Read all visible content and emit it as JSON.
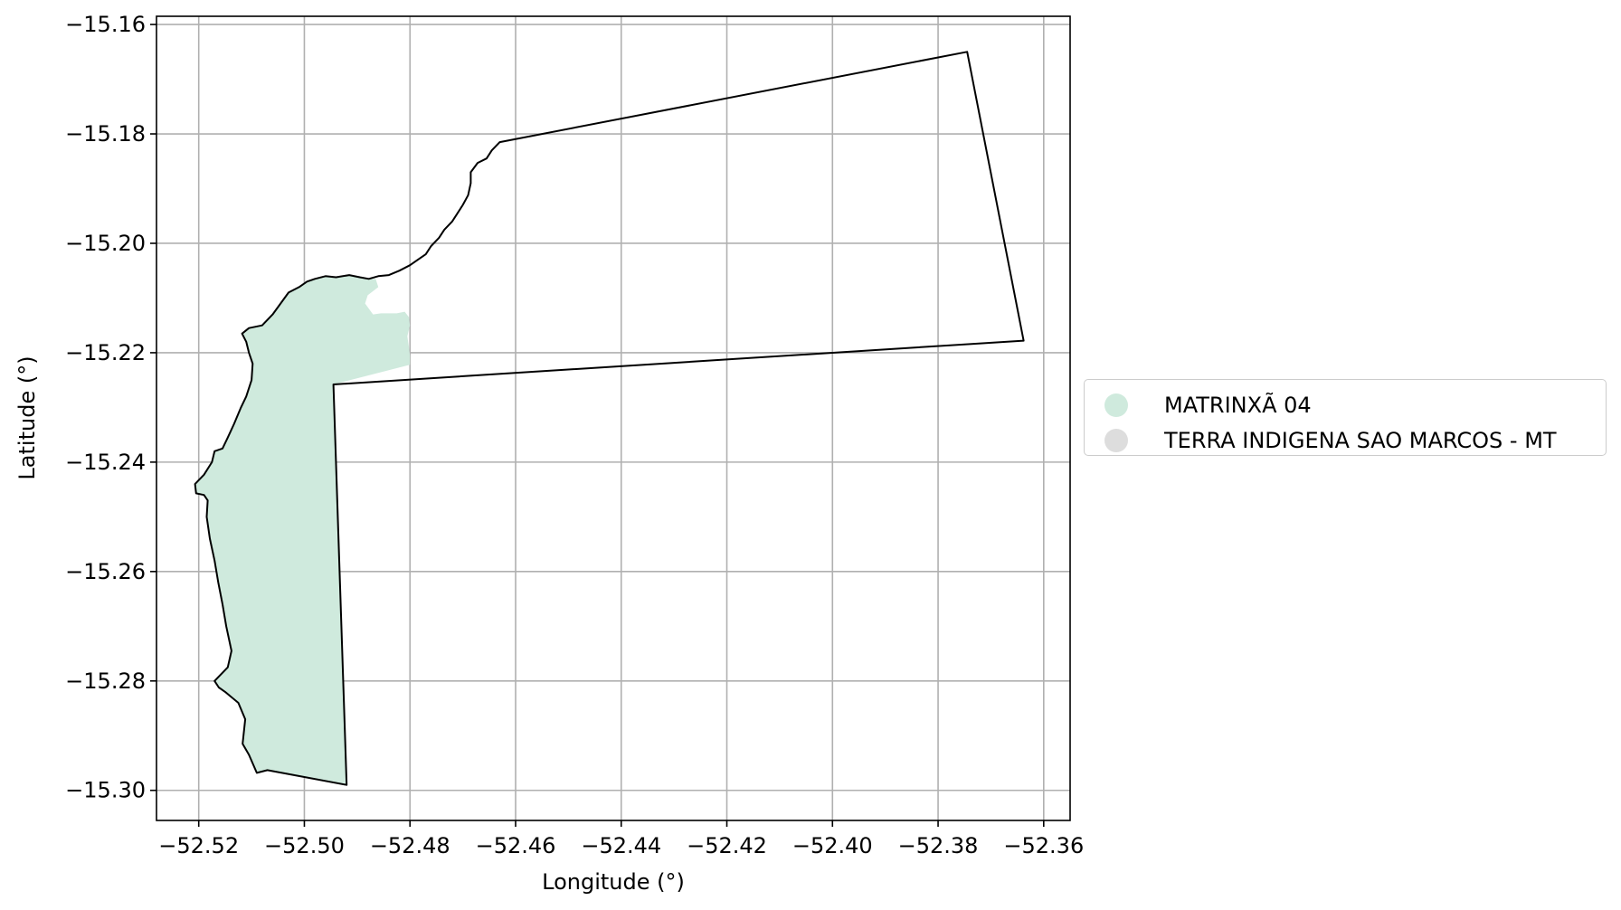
{
  "chart_data": {
    "type": "map",
    "title": "",
    "xlabel": "Longitude (°)",
    "ylabel": "Latitude (°)",
    "xlim": [
      -52.528,
      -52.355
    ],
    "ylim": [
      -15.3055,
      -15.1585
    ],
    "x_ticks": [
      -52.52,
      -52.5,
      -52.48,
      -52.46,
      -52.44,
      -52.42,
      -52.4,
      -52.38,
      -52.36
    ],
    "x_tick_labels": [
      "−52.52",
      "−52.50",
      "−52.48",
      "−52.46",
      "−52.44",
      "−52.42",
      "−52.40",
      "−52.38",
      "−52.36"
    ],
    "y_ticks": [
      -15.16,
      -15.18,
      -15.2,
      -15.22,
      -15.24,
      -15.26,
      -15.28,
      -15.3
    ],
    "y_tick_labels": [
      "−15.16",
      "−15.18",
      "−15.20",
      "−15.22",
      "−15.24",
      "−15.26",
      "−15.28",
      "−15.30"
    ],
    "grid": true,
    "legend_position": "right",
    "layers": [
      {
        "name": "MATRINXÃ 04",
        "color": "#cfeadd",
        "outline": "none",
        "polygon": [
          [
            -52.4945,
            -15.2258
          ],
          [
            -52.492,
            -15.299
          ],
          [
            -52.507,
            -15.2963
          ],
          [
            -52.509,
            -15.2968
          ],
          [
            -52.5105,
            -15.2935
          ],
          [
            -52.5117,
            -15.2915
          ],
          [
            -52.5112,
            -15.287
          ],
          [
            -52.5125,
            -15.284
          ],
          [
            -52.515,
            -15.282
          ],
          [
            -52.5162,
            -15.2812
          ],
          [
            -52.517,
            -15.28
          ],
          [
            -52.516,
            -15.279
          ],
          [
            -52.5145,
            -15.2775
          ],
          [
            -52.5138,
            -15.2745
          ],
          [
            -52.5148,
            -15.27
          ],
          [
            -52.5155,
            -15.266
          ],
          [
            -52.5163,
            -15.262
          ],
          [
            -52.517,
            -15.258
          ],
          [
            -52.5179,
            -15.254
          ],
          [
            -52.5185,
            -15.25
          ],
          [
            -52.5183,
            -15.247
          ],
          [
            -52.519,
            -15.246
          ],
          [
            -52.5205,
            -15.2457
          ],
          [
            -52.5207,
            -15.244
          ],
          [
            -52.519,
            -15.2423
          ],
          [
            -52.5175,
            -15.24
          ],
          [
            -52.517,
            -15.238
          ],
          [
            -52.5155,
            -15.2375
          ],
          [
            -52.5145,
            -15.2355
          ],
          [
            -52.5133,
            -15.233
          ],
          [
            -52.512,
            -15.23
          ],
          [
            -52.511,
            -15.228
          ],
          [
            -52.51,
            -15.225
          ],
          [
            -52.5098,
            -15.222
          ],
          [
            -52.5105,
            -15.22
          ],
          [
            -52.511,
            -15.218
          ],
          [
            -52.5118,
            -15.2165
          ],
          [
            -52.5105,
            -15.2155
          ],
          [
            -52.508,
            -15.215
          ],
          [
            -52.506,
            -15.213
          ],
          [
            -52.5045,
            -15.211
          ],
          [
            -52.503,
            -15.209
          ],
          [
            -52.501,
            -15.208
          ],
          [
            -52.4995,
            -15.207
          ],
          [
            -52.498,
            -15.2065
          ],
          [
            -52.496,
            -15.206
          ],
          [
            -52.494,
            -15.2062
          ],
          [
            -52.4915,
            -15.2058
          ],
          [
            -52.4895,
            -15.2062
          ],
          [
            -52.4878,
            -15.2065
          ],
          [
            -52.4865,
            -15.2065
          ],
          [
            -52.486,
            -15.208
          ],
          [
            -52.488,
            -15.2095
          ],
          [
            -52.4885,
            -15.211
          ],
          [
            -52.487,
            -15.213
          ],
          [
            -52.4855,
            -15.2128
          ],
          [
            -52.4825,
            -15.2128
          ],
          [
            -52.481,
            -15.2125
          ],
          [
            -52.4802,
            -15.2135
          ],
          [
            -52.48,
            -15.215
          ],
          [
            -52.4805,
            -15.217
          ],
          [
            -52.4802,
            -15.219
          ],
          [
            -52.48,
            -15.2205
          ],
          [
            -52.48,
            -15.2222
          ]
        ]
      },
      {
        "name": "TERRA INDIGENA SAO MARCOS - MT",
        "color": "#dddddd",
        "fill": "none",
        "edge_color": "#000000",
        "polygon": [
          [
            -52.4945,
            -15.2258
          ],
          [
            -52.492,
            -15.299
          ],
          [
            -52.507,
            -15.2963
          ],
          [
            -52.509,
            -15.2968
          ],
          [
            -52.5105,
            -15.2935
          ],
          [
            -52.5117,
            -15.2915
          ],
          [
            -52.5112,
            -15.287
          ],
          [
            -52.5125,
            -15.284
          ],
          [
            -52.515,
            -15.282
          ],
          [
            -52.5162,
            -15.2812
          ],
          [
            -52.517,
            -15.28
          ],
          [
            -52.516,
            -15.279
          ],
          [
            -52.5145,
            -15.2775
          ],
          [
            -52.5138,
            -15.2745
          ],
          [
            -52.5148,
            -15.27
          ],
          [
            -52.5155,
            -15.266
          ],
          [
            -52.5163,
            -15.262
          ],
          [
            -52.517,
            -15.258
          ],
          [
            -52.5179,
            -15.254
          ],
          [
            -52.5185,
            -15.25
          ],
          [
            -52.5183,
            -15.247
          ],
          [
            -52.519,
            -15.246
          ],
          [
            -52.5205,
            -15.2457
          ],
          [
            -52.5207,
            -15.244
          ],
          [
            -52.519,
            -15.2423
          ],
          [
            -52.5175,
            -15.24
          ],
          [
            -52.517,
            -15.238
          ],
          [
            -52.5155,
            -15.2375
          ],
          [
            -52.5145,
            -15.2355
          ],
          [
            -52.5133,
            -15.233
          ],
          [
            -52.512,
            -15.23
          ],
          [
            -52.511,
            -15.228
          ],
          [
            -52.51,
            -15.225
          ],
          [
            -52.5098,
            -15.222
          ],
          [
            -52.5105,
            -15.22
          ],
          [
            -52.511,
            -15.218
          ],
          [
            -52.5118,
            -15.2165
          ],
          [
            -52.5105,
            -15.2155
          ],
          [
            -52.508,
            -15.215
          ],
          [
            -52.506,
            -15.213
          ],
          [
            -52.5045,
            -15.211
          ],
          [
            -52.503,
            -15.209
          ],
          [
            -52.501,
            -15.208
          ],
          [
            -52.4995,
            -15.207
          ],
          [
            -52.498,
            -15.2065
          ],
          [
            -52.496,
            -15.206
          ],
          [
            -52.494,
            -15.2062
          ],
          [
            -52.4915,
            -15.2058
          ],
          [
            -52.4895,
            -15.2062
          ],
          [
            -52.4878,
            -15.2065
          ],
          [
            -52.486,
            -15.206
          ],
          [
            -52.484,
            -15.2058
          ],
          [
            -52.482,
            -15.205
          ],
          [
            -52.48,
            -15.204
          ],
          [
            -52.4785,
            -15.203
          ],
          [
            -52.477,
            -15.202
          ],
          [
            -52.476,
            -15.2005
          ],
          [
            -52.4745,
            -15.199
          ],
          [
            -52.4735,
            -15.1975
          ],
          [
            -52.472,
            -15.196
          ],
          [
            -52.471,
            -15.1945
          ],
          [
            -52.47,
            -15.193
          ],
          [
            -52.469,
            -15.1912
          ],
          [
            -52.4685,
            -15.189
          ],
          [
            -52.4685,
            -15.187
          ],
          [
            -52.4672,
            -15.1853
          ],
          [
            -52.4655,
            -15.1845
          ],
          [
            -52.4645,
            -15.183
          ],
          [
            -52.463,
            -15.1815
          ],
          [
            -52.3745,
            -15.165
          ],
          [
            -52.3638,
            -15.2178
          ],
          [
            -52.4945,
            -15.2258
          ]
        ]
      }
    ]
  }
}
